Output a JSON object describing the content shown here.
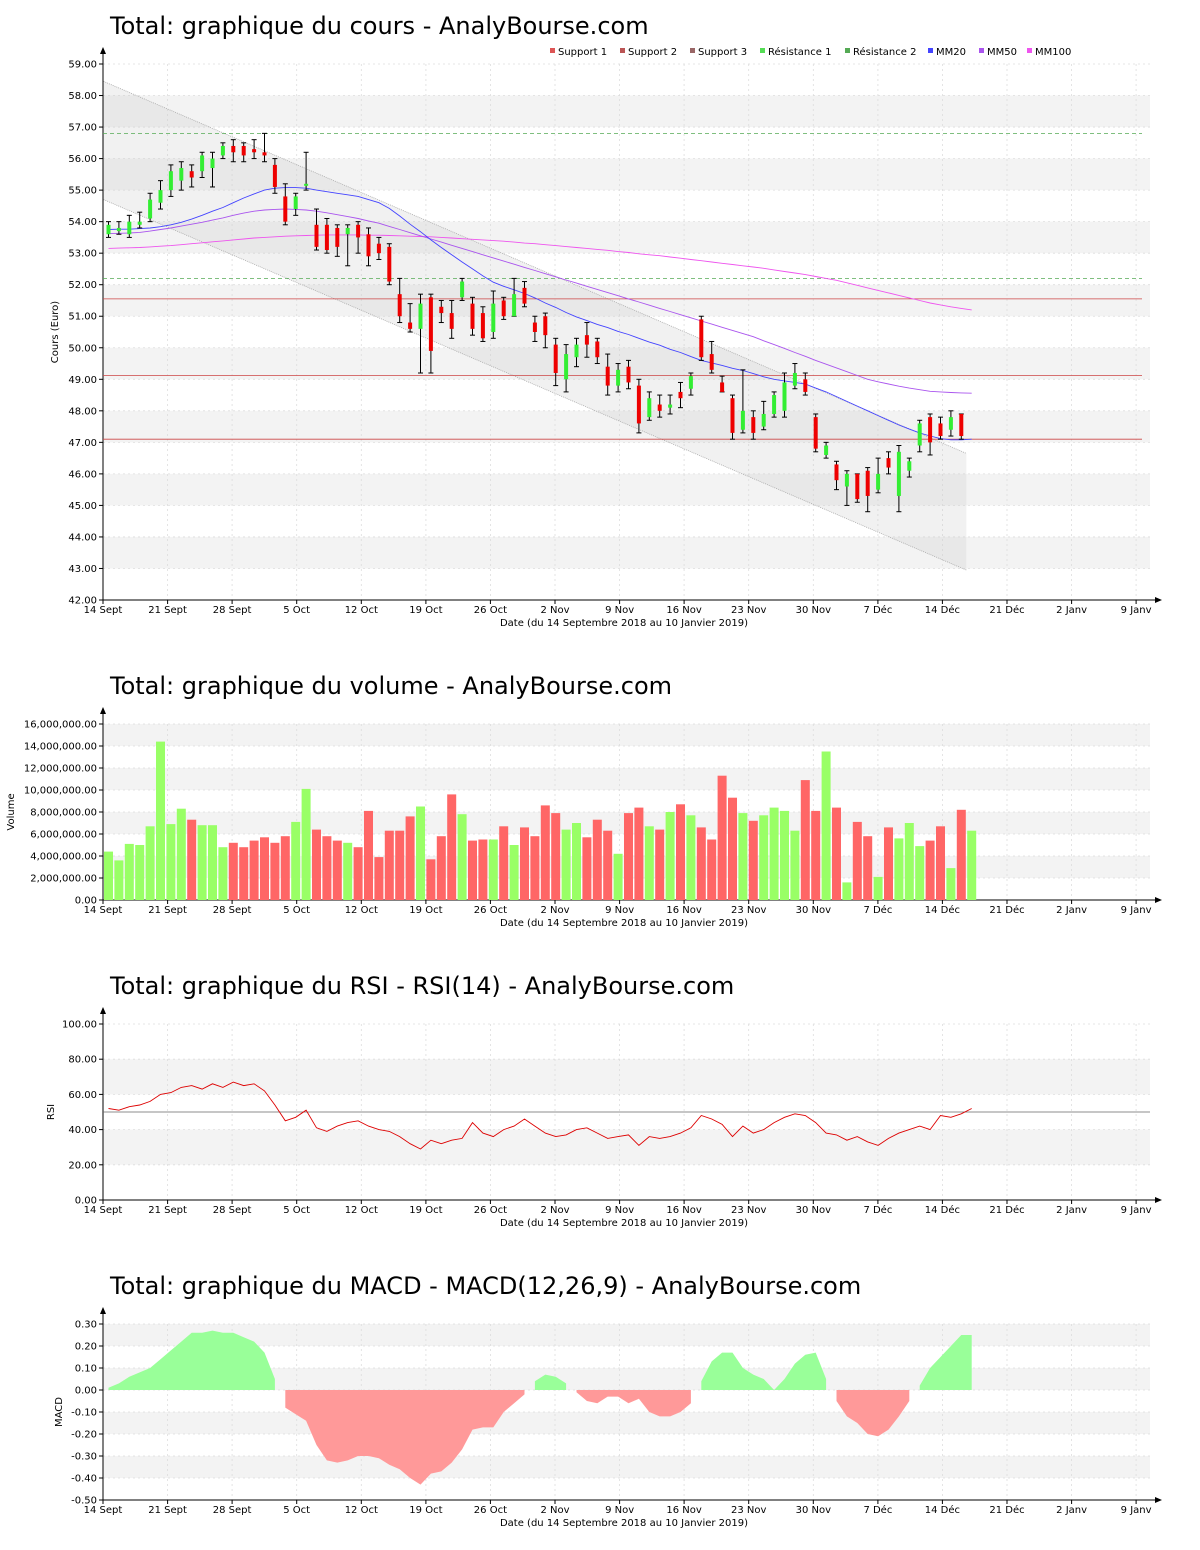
{
  "xlabel": "Date (du 14 Septembre 2018 au 10 Janvier 2019)",
  "x_ticks": [
    "14 Sept",
    "21 Sept",
    "28 Sept",
    "5 Oct",
    "12 Oct",
    "19 Oct",
    "26 Oct",
    "2 Nov",
    "9 Nov",
    "16 Nov",
    "23 Nov",
    "30 Nov",
    "7 Déc",
    "14 Déc",
    "21 Déc",
    "2 Janv",
    "9 Janv"
  ],
  "colors": {
    "up": "#33ee33",
    "down": "#ee0000",
    "vol_up": "#99ff66",
    "vol_down": "#ff6666",
    "mm20": "#4444ff",
    "mm50": "#aa55ee",
    "mm100": "#ee55ee",
    "support": "#cc4444",
    "resistance": "#55aa55",
    "rsi": "#dd0000",
    "macd_pos": "#99ff99",
    "macd_neg": "#ff9999"
  },
  "chart_data": [
    {
      "id": "price",
      "type": "candlestick",
      "title": "Total: graphique du cours - AnalyBourse.com",
      "ylabel": "Cours (Euro)",
      "ylim": [
        42,
        59
      ],
      "y_ticks": [
        "42.00",
        "43.00",
        "44.00",
        "45.00",
        "46.00",
        "47.00",
        "48.00",
        "49.00",
        "50.00",
        "51.00",
        "52.00",
        "53.00",
        "54.00",
        "55.00",
        "56.00",
        "57.00",
        "58.00",
        "59.00"
      ],
      "legend": [
        {
          "name": "Support 1",
          "color": "#dd5555"
        },
        {
          "name": "Support 2",
          "color": "#bb5555"
        },
        {
          "name": "Support 3",
          "color": "#996666"
        },
        {
          "name": "Résistance 1",
          "color": "#55dd55"
        },
        {
          "name": "Résistance 2",
          "color": "#55aa55"
        },
        {
          "name": "MM20",
          "color": "#4444ff"
        },
        {
          "name": "MM50",
          "color": "#aa55ee"
        },
        {
          "name": "MM100",
          "color": "#ee55ee"
        }
      ],
      "supports": [
        51.55,
        49.12,
        47.1
      ],
      "resistances": [
        56.8,
        52.2
      ],
      "candles": [
        [
          53.6,
          53.9,
          53.5,
          54.0
        ],
        [
          53.7,
          53.8,
          53.6,
          54.0
        ],
        [
          53.6,
          54.0,
          53.5,
          54.2
        ],
        [
          53.9,
          54.0,
          53.8,
          54.3
        ],
        [
          54.1,
          54.7,
          54.0,
          54.9
        ],
        [
          54.6,
          55.0,
          54.4,
          55.3
        ],
        [
          55.0,
          55.6,
          54.8,
          55.8
        ],
        [
          55.3,
          55.7,
          55.0,
          55.9
        ],
        [
          55.6,
          55.4,
          55.1,
          55.8
        ],
        [
          55.6,
          56.1,
          55.4,
          56.2
        ],
        [
          55.7,
          56.0,
          55.1,
          56.2
        ],
        [
          56.1,
          56.4,
          56.0,
          56.5
        ],
        [
          56.4,
          56.2,
          55.9,
          56.6
        ],
        [
          56.4,
          56.1,
          55.9,
          56.5
        ],
        [
          56.3,
          56.2,
          56.0,
          56.6
        ],
        [
          56.2,
          56.1,
          55.9,
          56.8
        ],
        [
          55.8,
          55.1,
          54.9,
          56.0
        ],
        [
          54.8,
          54.0,
          53.9,
          55.2
        ],
        [
          54.4,
          54.8,
          54.2,
          54.9
        ],
        [
          55.2,
          55.2,
          55.0,
          56.2
        ],
        [
          53.9,
          53.2,
          53.1,
          54.4
        ],
        [
          53.9,
          53.1,
          53.0,
          54.1
        ],
        [
          53.8,
          53.2,
          52.9,
          53.9
        ],
        [
          53.6,
          53.8,
          52.6,
          53.9
        ],
        [
          53.9,
          53.5,
          53.0,
          54.0
        ],
        [
          53.6,
          52.9,
          52.6,
          53.8
        ],
        [
          53.3,
          53.0,
          52.8,
          53.5
        ],
        [
          53.2,
          52.1,
          52.0,
          53.3
        ],
        [
          51.7,
          51.0,
          50.8,
          52.2
        ],
        [
          50.8,
          50.6,
          50.5,
          51.4
        ],
        [
          50.6,
          51.4,
          49.2,
          51.7
        ],
        [
          51.6,
          49.9,
          49.2,
          51.7
        ],
        [
          51.3,
          51.1,
          50.8,
          51.5
        ],
        [
          51.1,
          50.6,
          50.3,
          51.5
        ],
        [
          51.6,
          52.1,
          51.5,
          52.2
        ],
        [
          51.4,
          50.6,
          50.4,
          51.6
        ],
        [
          51.1,
          50.3,
          50.2,
          51.3
        ],
        [
          50.5,
          51.4,
          50.3,
          51.8
        ],
        [
          51.5,
          51.0,
          50.9,
          51.6
        ],
        [
          51.0,
          51.7,
          51.0,
          52.2
        ],
        [
          51.9,
          51.4,
          51.3,
          52.1
        ],
        [
          50.8,
          50.5,
          50.2,
          51.0
        ],
        [
          51.0,
          50.4,
          50.0,
          51.1
        ],
        [
          50.1,
          49.2,
          48.8,
          50.3
        ],
        [
          49.0,
          49.8,
          48.6,
          50.1
        ],
        [
          49.7,
          50.1,
          49.4,
          50.3
        ],
        [
          50.4,
          50.1,
          49.7,
          50.8
        ],
        [
          50.2,
          49.7,
          49.5,
          50.3
        ],
        [
          49.4,
          48.8,
          48.5,
          49.8
        ],
        [
          48.8,
          49.3,
          48.6,
          49.5
        ],
        [
          49.4,
          48.9,
          48.7,
          49.6
        ],
        [
          48.8,
          47.6,
          47.3,
          49.0
        ],
        [
          47.8,
          48.4,
          47.7,
          48.6
        ],
        [
          48.2,
          48.0,
          47.8,
          48.5
        ],
        [
          48.1,
          48.2,
          47.9,
          48.5
        ],
        [
          48.6,
          48.4,
          48.1,
          48.9
        ],
        [
          48.7,
          49.1,
          48.5,
          49.2
        ],
        [
          50.9,
          49.7,
          49.6,
          51.0
        ],
        [
          49.8,
          49.3,
          49.2,
          50.2
        ],
        [
          48.9,
          48.6,
          48.6,
          49.1
        ],
        [
          48.4,
          47.3,
          47.1,
          48.5
        ],
        [
          47.4,
          48.0,
          47.3,
          49.3
        ],
        [
          47.8,
          47.3,
          47.1,
          48.0
        ],
        [
          47.5,
          47.9,
          47.4,
          48.3
        ],
        [
          47.9,
          48.5,
          47.8,
          48.6
        ],
        [
          48.0,
          48.9,
          47.8,
          49.2
        ],
        [
          48.8,
          49.2,
          48.7,
          49.5
        ],
        [
          49.0,
          48.6,
          48.5,
          49.2
        ],
        [
          47.8,
          46.8,
          46.7,
          47.9
        ],
        [
          46.6,
          46.9,
          46.5,
          47.0
        ],
        [
          46.3,
          45.8,
          45.5,
          46.4
        ],
        [
          45.6,
          46.0,
          45.0,
          46.1
        ],
        [
          46.0,
          45.2,
          45.1,
          46.0
        ],
        [
          46.1,
          45.3,
          44.8,
          46.2
        ],
        [
          45.5,
          46.0,
          45.4,
          46.5
        ],
        [
          46.5,
          46.2,
          46.0,
          46.7
        ],
        [
          45.3,
          46.7,
          44.8,
          46.9
        ],
        [
          46.1,
          46.4,
          45.9,
          46.5
        ],
        [
          46.9,
          47.6,
          46.7,
          47.7
        ],
        [
          47.8,
          47.0,
          46.6,
          47.9
        ],
        [
          47.6,
          47.2,
          47.1,
          47.8
        ],
        [
          47.4,
          47.8,
          47.2,
          48.0
        ],
        [
          47.9,
          47.2,
          47.1,
          47.9
        ]
      ],
      "mm20": [
        53.75,
        53.76,
        53.76,
        53.78,
        53.8,
        53.84,
        53.9,
        53.98,
        54.08,
        54.2,
        54.33,
        54.45,
        54.6,
        54.75,
        54.88,
        55.0,
        55.06,
        55.08,
        55.08,
        55.06,
        55.0,
        54.95,
        54.9,
        54.85,
        54.8,
        54.7,
        54.6,
        54.42,
        54.18,
        53.92,
        53.68,
        53.42,
        53.18,
        52.95,
        52.72,
        52.5,
        52.28,
        52.08,
        51.95,
        51.84,
        51.72,
        51.58,
        51.42,
        51.28,
        51.12,
        50.98,
        50.86,
        50.74,
        50.64,
        50.52,
        50.42,
        50.3,
        50.18,
        50.08,
        49.95,
        49.85,
        49.72,
        49.6,
        49.52,
        49.44,
        49.35,
        49.28,
        49.18,
        49.08,
        49.0,
        48.95,
        48.9,
        48.85,
        48.72,
        48.6,
        48.45,
        48.3,
        48.15,
        48.0,
        47.85,
        47.7,
        47.55,
        47.42,
        47.3,
        47.2,
        47.12,
        47.08,
        47.08,
        47.1
      ],
      "mm50": [
        53.62,
        53.63,
        53.64,
        53.66,
        53.7,
        53.75,
        53.8,
        53.86,
        53.92,
        53.98,
        54.05,
        54.12,
        54.2,
        54.27,
        54.33,
        54.37,
        54.39,
        54.4,
        54.39,
        54.37,
        54.33,
        54.28,
        54.22,
        54.16,
        54.1,
        54.02,
        53.95,
        53.85,
        53.75,
        53.65,
        53.55,
        53.45,
        53.35,
        53.25,
        53.15,
        53.05,
        52.95,
        52.85,
        52.75,
        52.65,
        52.55,
        52.45,
        52.35,
        52.25,
        52.15,
        52.05,
        51.95,
        51.85,
        51.75,
        51.65,
        51.55,
        51.45,
        51.35,
        51.25,
        51.15,
        51.05,
        50.95,
        50.85,
        50.75,
        50.65,
        50.55,
        50.45,
        50.35,
        50.22,
        50.1,
        49.98,
        49.85,
        49.73,
        49.6,
        49.48,
        49.36,
        49.24,
        49.12,
        49.0,
        48.92,
        48.85,
        48.78,
        48.72,
        48.67,
        48.62,
        48.6,
        48.58,
        48.57,
        48.56
      ],
      "mm100": [
        53.15,
        53.16,
        53.17,
        53.18,
        53.2,
        53.22,
        53.24,
        53.27,
        53.3,
        53.33,
        53.36,
        53.39,
        53.42,
        53.45,
        53.48,
        53.5,
        53.52,
        53.54,
        53.55,
        53.56,
        53.57,
        53.58,
        53.58,
        53.58,
        53.58,
        53.57,
        53.57,
        53.56,
        53.55,
        53.54,
        53.53,
        53.52,
        53.5,
        53.48,
        53.46,
        53.44,
        53.42,
        53.4,
        53.38,
        53.35,
        53.32,
        53.3,
        53.27,
        53.24,
        53.21,
        53.18,
        53.15,
        53.12,
        53.09,
        53.05,
        53.02,
        52.98,
        52.95,
        52.92,
        52.88,
        52.84,
        52.8,
        52.76,
        52.72,
        52.68,
        52.64,
        52.6,
        52.56,
        52.52,
        52.47,
        52.42,
        52.37,
        52.32,
        52.26,
        52.2,
        52.14,
        52.06,
        51.98,
        51.9,
        51.82,
        51.74,
        51.66,
        51.58,
        51.5,
        51.42,
        51.36,
        51.3,
        51.25,
        51.2
      ],
      "channel": {
        "upper_start": 58.45,
        "upper_end": 46.65,
        "lower_start": 54.7,
        "lower_end": 42.95
      }
    },
    {
      "id": "volume",
      "type": "bar",
      "title": "Total: graphique du volume - AnalyBourse.com",
      "ylabel": "Volume",
      "ylim": [
        0,
        16000000
      ],
      "y_ticks": [
        "0.00",
        "2,000,000.00",
        "4,000,000.00",
        "6,000,000.00",
        "8,000,000.00",
        "10,000,000.00",
        "12,000,000.00",
        "14,000,000.00",
        "16,000,000.00"
      ],
      "values": [
        4400000,
        3600000,
        5100000,
        5000000,
        6700000,
        14400000,
        6900000,
        8300000,
        7300000,
        6800000,
        6800000,
        4800000,
        5200000,
        4800000,
        5400000,
        5700000,
        5200000,
        5800000,
        7100000,
        10100000,
        6400000,
        5800000,
        5400000,
        5200000,
        4800000,
        8100000,
        3900000,
        6300000,
        6300000,
        7600000,
        8500000,
        3700000,
        5800000,
        9600000,
        7800000,
        5400000,
        5500000,
        5500000,
        6700000,
        5000000,
        6600000,
        5800000,
        8600000,
        7900000,
        6400000,
        7000000,
        5700000,
        7300000,
        6300000,
        4200000,
        7900000,
        8400000,
        6700000,
        6400000,
        8000000,
        8700000,
        7700000,
        6600000,
        5500000,
        11300000,
        9300000,
        7900000,
        7200000,
        7700000,
        8400000,
        8100000,
        6300000,
        10900000,
        8100000,
        13500000,
        8400000,
        1600000,
        7100000,
        5800000,
        2100000,
        6600000,
        5600000,
        7000000,
        4900000,
        5400000,
        6700000,
        2900000,
        8200000,
        6300000
      ]
    },
    {
      "id": "rsi",
      "type": "line",
      "title": "Total: graphique du RSI - RSI(14) - AnalyBourse.com",
      "ylabel": "RSI",
      "ylim": [
        0,
        100
      ],
      "y_ticks": [
        "0.00",
        "20.00",
        "40.00",
        "60.00",
        "80.00",
        "100.00"
      ],
      "reference": 50,
      "values": [
        52,
        51,
        53,
        54,
        56,
        60,
        61,
        64,
        65,
        63,
        66,
        64,
        67,
        65,
        66,
        62,
        54,
        45,
        47,
        51,
        41,
        39,
        42,
        44,
        45,
        42,
        40,
        39,
        36,
        32,
        29,
        34,
        32,
        34,
        35,
        44,
        38,
        36,
        40,
        42,
        46,
        42,
        38,
        36,
        37,
        40,
        41,
        38,
        35,
        36,
        37,
        31,
        36,
        35,
        36,
        38,
        41,
        48,
        46,
        43,
        36,
        42,
        38,
        40,
        44,
        47,
        49,
        48,
        44,
        38,
        37,
        34,
        36,
        33,
        31,
        35,
        38,
        40,
        42,
        40,
        48,
        47,
        49,
        52
      ]
    },
    {
      "id": "macd",
      "type": "area",
      "title": "Total: graphique du MACD - MACD(12,26,9) - AnalyBourse.com",
      "ylabel": "MACD",
      "ylim": [
        -0.5,
        0.3
      ],
      "y_ticks": [
        "-0.50",
        "-0.40",
        "-0.30",
        "-0.20",
        "-0.10",
        "0.00",
        "0.10",
        "0.20",
        "0.30"
      ],
      "values": [
        0.01,
        0.03,
        0.06,
        0.08,
        0.1,
        0.14,
        0.18,
        0.22,
        0.26,
        0.26,
        0.27,
        0.26,
        0.26,
        0.24,
        0.22,
        0.17,
        0.05,
        -0.08,
        -0.11,
        -0.14,
        -0.25,
        -0.32,
        -0.33,
        -0.32,
        -0.3,
        -0.3,
        -0.31,
        -0.34,
        -0.36,
        -0.4,
        -0.43,
        -0.38,
        -0.37,
        -0.33,
        -0.27,
        -0.18,
        -0.17,
        -0.17,
        -0.1,
        -0.06,
        -0.02,
        0.04,
        0.07,
        0.06,
        0.03,
        -0.01,
        -0.05,
        -0.06,
        -0.03,
        -0.03,
        -0.06,
        -0.04,
        -0.1,
        -0.12,
        -0.12,
        -0.1,
        -0.06,
        0.04,
        0.13,
        0.17,
        0.17,
        0.1,
        0.07,
        0.05,
        0.0,
        0.05,
        0.12,
        0.16,
        0.17,
        0.05,
        -0.05,
        -0.12,
        -0.15,
        -0.2,
        -0.21,
        -0.18,
        -0.12,
        -0.05,
        0.02,
        0.1,
        0.15,
        0.2,
        0.25,
        0.25
      ]
    }
  ]
}
